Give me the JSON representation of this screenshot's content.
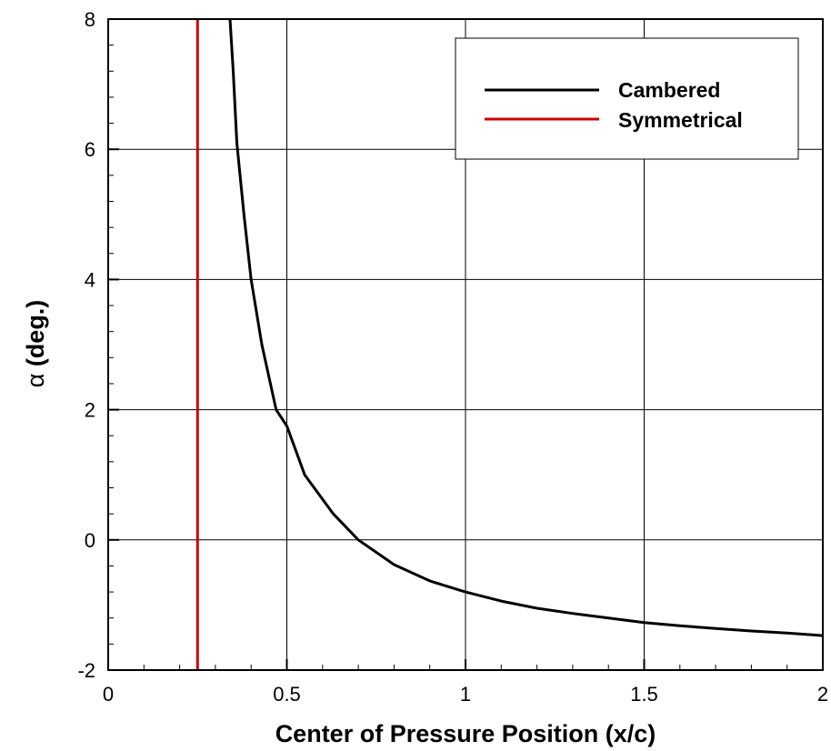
{
  "chart_data": {
    "type": "line",
    "xlabel": "Center of Pressure Position (x/c)",
    "ylabel_symbol": "α",
    "ylabel_text": " (deg.)",
    "xlim": [
      0,
      2
    ],
    "ylim": [
      -2,
      8
    ],
    "x_ticks": [
      0,
      0.5,
      1,
      1.5,
      2
    ],
    "x_tick_labels": [
      "0",
      "0.5",
      "1",
      "1.5",
      "2"
    ],
    "y_ticks": [
      -2,
      0,
      2,
      4,
      6,
      8
    ],
    "y_tick_labels": [
      "-2",
      "0",
      "2",
      "4",
      "6",
      "8"
    ],
    "grid": true,
    "legend_position": "top-right",
    "series": [
      {
        "name": "Cambered",
        "color": "#000000",
        "x": [
          0.341,
          0.35,
          0.36,
          0.38,
          0.4,
          0.43,
          0.47,
          0.5,
          0.55,
          0.63,
          0.7,
          0.8,
          0.9,
          1.0,
          1.1,
          1.2,
          1.3,
          1.4,
          1.5,
          1.6,
          1.7,
          1.8,
          1.9,
          2.0
        ],
        "y": [
          8.0,
          7.2,
          6.1,
          5.0,
          4.0,
          3.0,
          2.0,
          1.75,
          1.0,
          0.4,
          0.0,
          -0.38,
          -0.63,
          -0.8,
          -0.94,
          -1.05,
          -1.13,
          -1.2,
          -1.27,
          -1.32,
          -1.36,
          -1.4,
          -1.43,
          -1.47
        ]
      },
      {
        "name": "Symmetrical",
        "color": "#cc0000",
        "x": [
          0.25,
          0.25
        ],
        "y": [
          -2,
          8
        ]
      }
    ]
  }
}
